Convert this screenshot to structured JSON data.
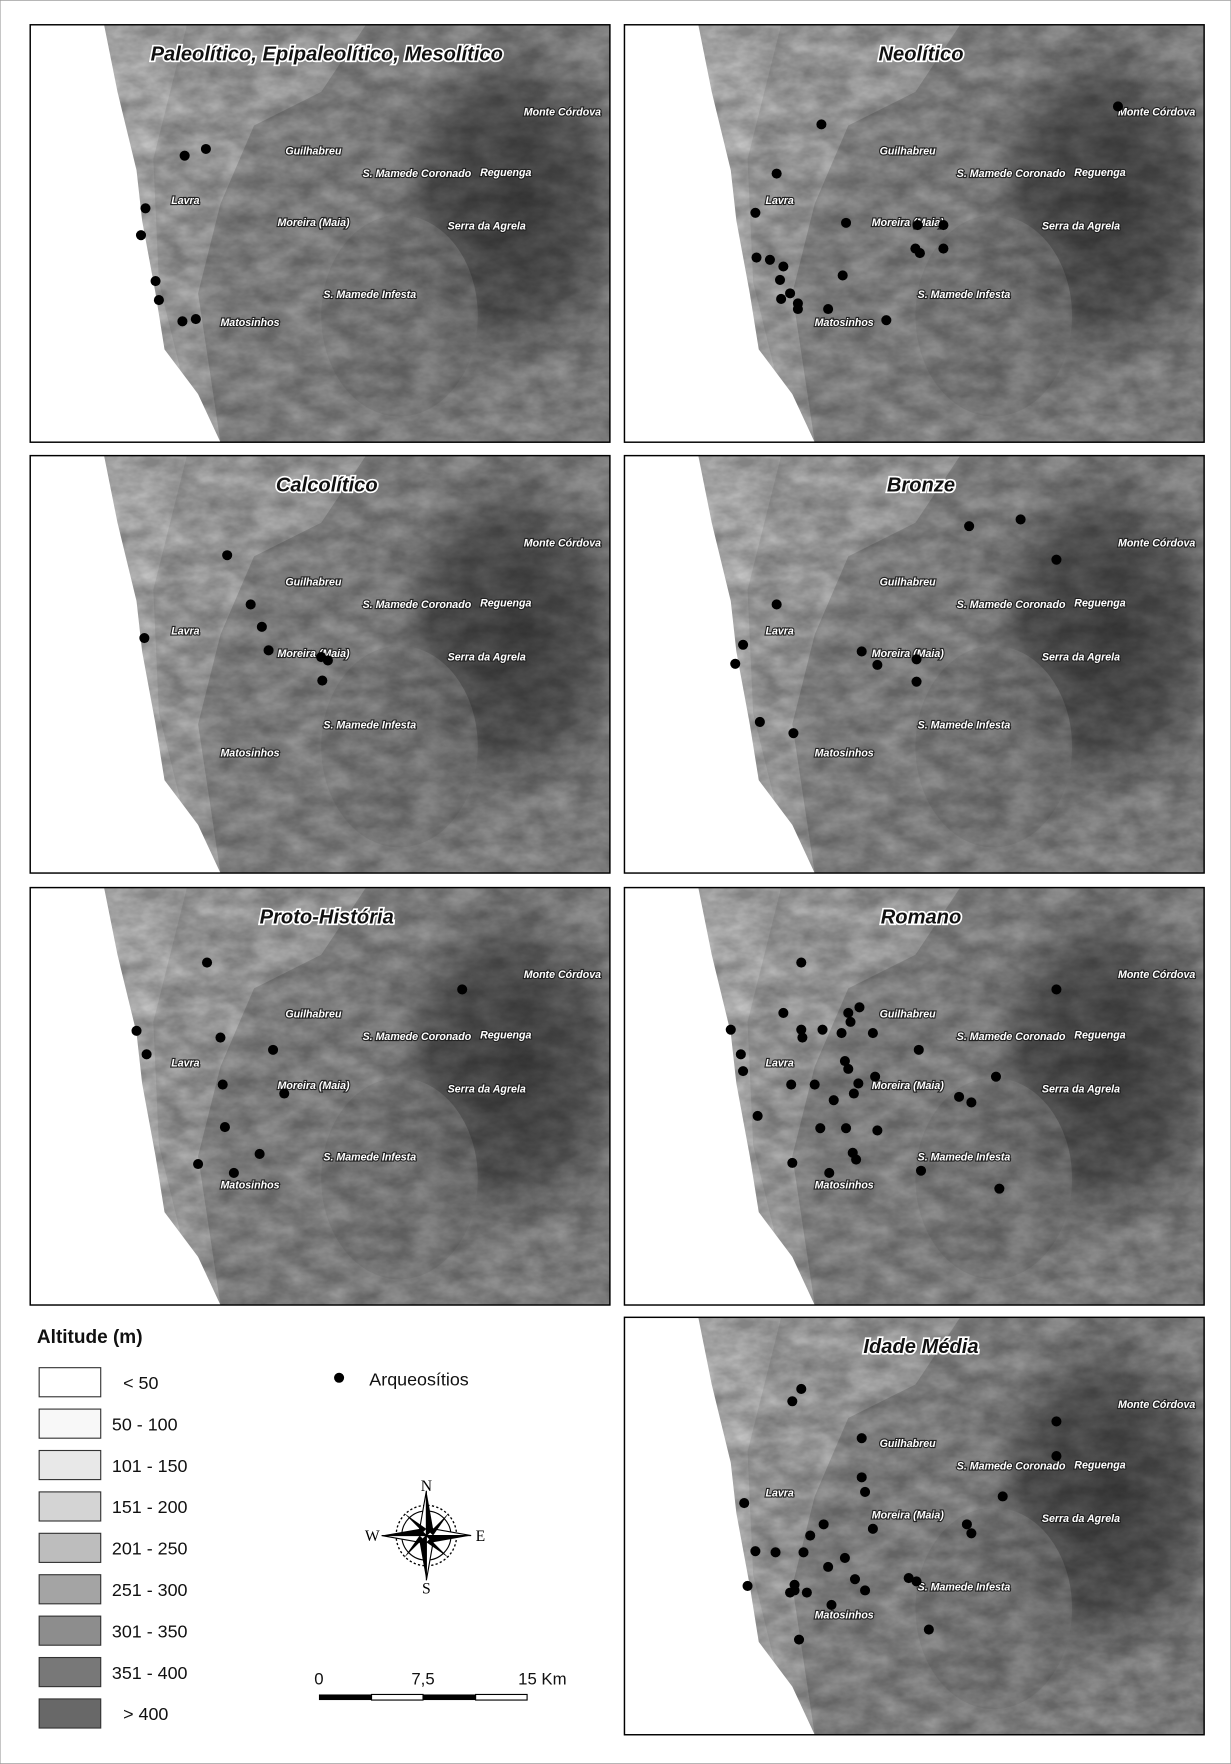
{
  "panels": [
    {
      "title": "Paleolítico, Epipaleolítico, Mesolítico"
    },
    {
      "title": "Neolítico"
    },
    {
      "title": "Calcolítico"
    },
    {
      "title": "Bronze"
    },
    {
      "title": "Proto-História"
    },
    {
      "title": "Romano"
    },
    {
      "title": "Idade Média"
    }
  ],
  "place_names": [
    "Monte Córdova",
    "Guilhabreu",
    "S. Mamede Coronado",
    "Reguenga",
    "Lavra",
    "Moreira (Maia)",
    "Serra da Agrela",
    "S. Mamede Infesta",
    "Matosinhos"
  ],
  "legend": {
    "title": "Altitude (m)",
    "classes": [
      "< 50",
      "50 - 100",
      "101 - 150",
      "151 - 200",
      "201 - 250",
      "251 - 300",
      "301 - 350",
      "351 - 400",
      "> 400"
    ],
    "site_symbol": "Arqueosítios"
  },
  "compass": {
    "n": "N",
    "e": "E",
    "s": "S",
    "w": "W"
  },
  "scale_bar": [
    "0",
    "7,5",
    "15 Km"
  ]
}
